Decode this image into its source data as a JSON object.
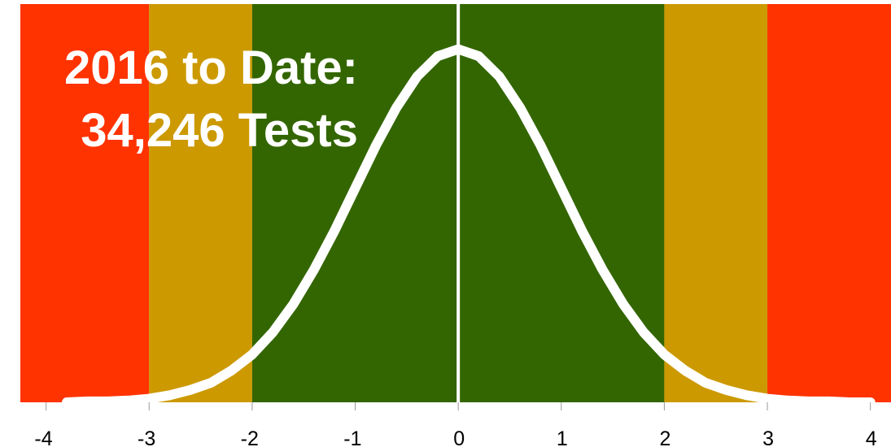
{
  "chart_data": {
    "type": "line",
    "title": [
      "2016 to Date:",
      "34,246 Tests"
    ],
    "x": [
      -3.8,
      -3.6,
      -3.4,
      -3.2,
      -3.0,
      -2.8,
      -2.6,
      -2.4,
      -2.2,
      -2.0,
      -1.8,
      -1.6,
      -1.4,
      -1.2,
      -1.0,
      -0.8,
      -0.6,
      -0.4,
      -0.2,
      0.0,
      0.2,
      0.4,
      0.6,
      0.8,
      1.0,
      1.2,
      1.4,
      1.6,
      1.8,
      2.0,
      2.2,
      2.4,
      2.6,
      2.8,
      3.0,
      3.2,
      3.4,
      3.6,
      3.8,
      4.0
    ],
    "series": [
      {
        "color": "#ffffff",
        "values": [
          0.0,
          0.001,
          0.001,
          0.002,
          0.004,
          0.008,
          0.014,
          0.022,
          0.036,
          0.054,
          0.079,
          0.111,
          0.15,
          0.194,
          0.242,
          0.29,
          0.333,
          0.368,
          0.391,
          0.399,
          0.391,
          0.368,
          0.333,
          0.29,
          0.242,
          0.194,
          0.15,
          0.111,
          0.079,
          0.054,
          0.036,
          0.022,
          0.014,
          0.008,
          0.004,
          0.002,
          0.001,
          0.001,
          0.0,
          0.0
        ]
      }
    ],
    "bands": [
      {
        "from": -4.25,
        "to": -3,
        "color": "#ff3300"
      },
      {
        "from": -3,
        "to": -2,
        "color": "#cc9900"
      },
      {
        "from": -2,
        "to": 2,
        "color": "#336600"
      },
      {
        "from": 2,
        "to": 3,
        "color": "#cc9900"
      },
      {
        "from": 3,
        "to": 4.2,
        "color": "#ff3300"
      }
    ],
    "vline": 0,
    "xlim": [
      -4.25,
      4.2
    ],
    "ylim": [
      0,
      0.45
    ],
    "xticks": [
      -4,
      -3,
      -2,
      -1,
      0,
      1,
      2,
      3,
      4
    ]
  }
}
